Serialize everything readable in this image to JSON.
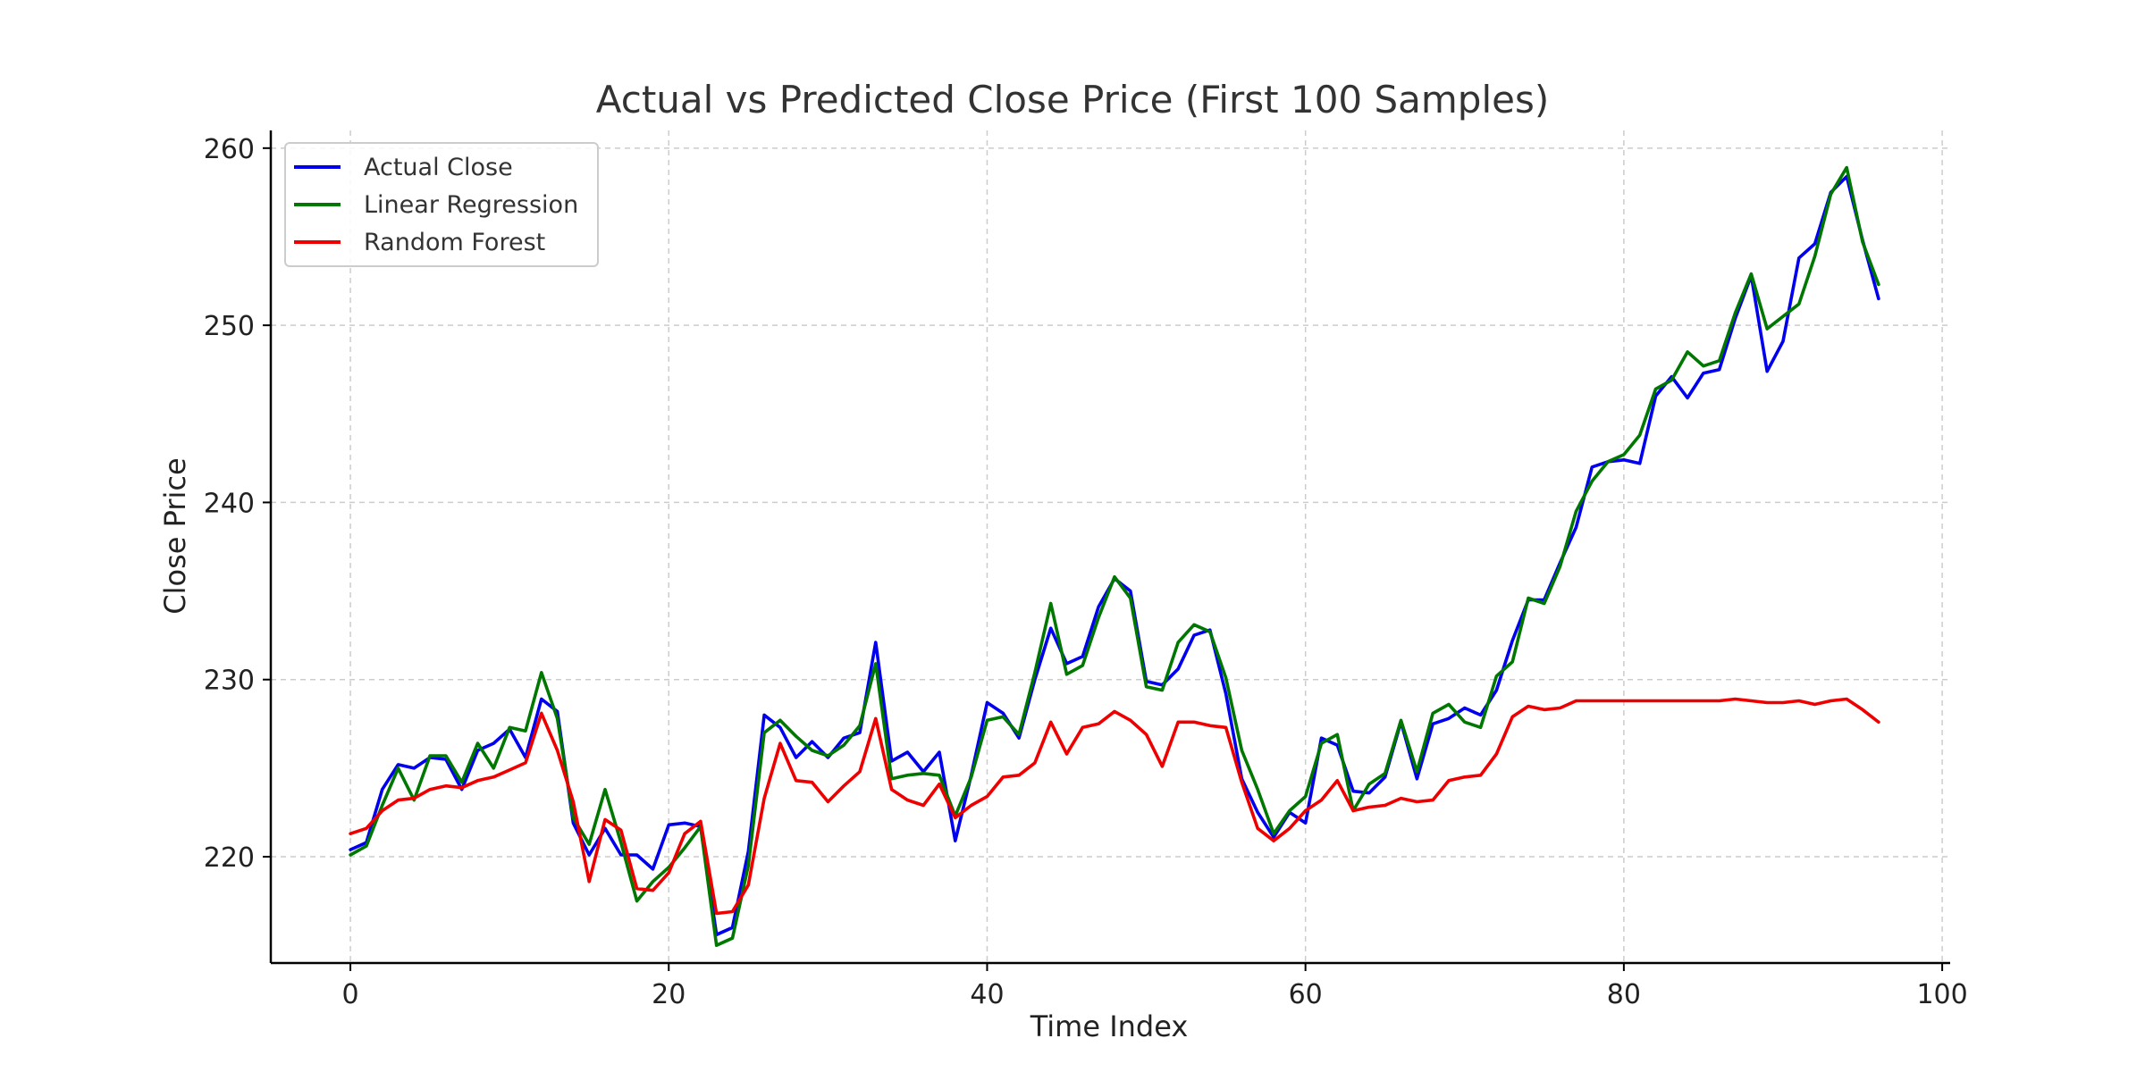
{
  "chart_data": {
    "type": "line",
    "title": "Actual vs Predicted Close Price (First 100 Samples)",
    "xlabel": "Time Index",
    "ylabel": "Close Price",
    "xlim": [
      -5,
      100.5
    ],
    "ylim": [
      214,
      261
    ],
    "xticks": [
      0,
      20,
      40,
      60,
      80,
      100
    ],
    "yticks": [
      220,
      230,
      240,
      250,
      260
    ],
    "grid": true,
    "legend_position": "top-left",
    "series": [
      {
        "name": "Actual Close",
        "color": "#0000ee",
        "values": [
          220.4,
          220.8,
          223.8,
          225.2,
          225.0,
          225.6,
          225.5,
          223.8,
          226.0,
          226.4,
          227.2,
          225.6,
          228.9,
          228.2,
          221.9,
          220.1,
          221.6,
          220.1,
          220.1,
          219.3,
          221.8,
          221.9,
          221.7,
          215.6,
          216.0,
          220.3,
          228.0,
          227.3,
          225.6,
          226.5,
          225.6,
          226.7,
          227.0,
          232.1,
          225.4,
          225.9,
          224.8,
          225.9,
          220.9,
          224.6,
          228.7,
          228.1,
          226.7,
          230.0,
          232.9,
          230.9,
          231.3,
          234.1,
          235.7,
          235.0,
          229.9,
          229.7,
          230.6,
          232.5,
          232.8,
          229.2,
          224.4,
          222.5,
          221.1,
          222.5,
          221.9,
          226.7,
          226.3,
          223.7,
          223.6,
          224.5,
          227.6,
          224.4,
          227.5,
          227.8,
          228.4,
          228.0,
          229.4,
          232.2,
          234.5,
          234.5,
          236.6,
          238.6,
          242.0,
          242.3,
          242.4,
          242.2,
          246.0,
          247.1,
          245.9,
          247.3,
          247.5,
          250.4,
          252.8,
          247.4,
          249.1,
          253.8,
          254.6,
          257.5,
          258.4,
          254.8,
          251.5
        ]
      },
      {
        "name": "Linear Regression",
        "color": "#007700",
        "values": [
          220.1,
          220.6,
          222.9,
          225.0,
          223.2,
          225.7,
          225.7,
          224.2,
          226.4,
          225.0,
          227.3,
          227.1,
          230.4,
          227.8,
          222.2,
          220.7,
          223.8,
          220.8,
          217.5,
          218.6,
          219.4,
          220.5,
          221.7,
          215.0,
          215.4,
          219.5,
          227.0,
          227.7,
          226.8,
          226.0,
          225.7,
          226.3,
          227.4,
          230.9,
          224.4,
          224.6,
          224.7,
          224.6,
          222.3,
          224.5,
          227.7,
          227.9,
          226.9,
          230.4,
          234.3,
          230.3,
          230.8,
          233.5,
          235.8,
          234.6,
          229.6,
          229.4,
          232.1,
          233.1,
          232.7,
          230.1,
          226.0,
          223.8,
          221.3,
          222.6,
          223.4,
          226.4,
          226.9,
          222.6,
          224.1,
          224.7,
          227.7,
          224.8,
          228.1,
          228.6,
          227.6,
          227.3,
          230.2,
          231.0,
          234.6,
          234.3,
          236.4,
          239.5,
          241.2,
          242.3,
          242.7,
          243.8,
          246.4,
          246.9,
          248.5,
          247.7,
          248.0,
          250.7,
          252.9,
          249.8,
          250.5,
          251.2,
          253.9,
          257.4,
          258.9,
          254.7,
          252.3
        ]
      },
      {
        "name": "Random Forest",
        "color": "#ee0000",
        "values": [
          221.3,
          221.6,
          222.6,
          223.2,
          223.3,
          223.8,
          224.0,
          223.9,
          224.3,
          224.5,
          224.9,
          225.3,
          228.1,
          226.0,
          223.1,
          218.6,
          222.1,
          221.5,
          218.2,
          218.1,
          219.1,
          221.3,
          222.0,
          216.8,
          216.9,
          218.4,
          223.3,
          226.4,
          224.3,
          224.2,
          223.1,
          224.0,
          224.8,
          227.8,
          223.8,
          223.2,
          222.9,
          224.1,
          222.2,
          222.9,
          223.4,
          224.5,
          224.6,
          225.3,
          227.6,
          225.8,
          227.3,
          227.5,
          228.2,
          227.7,
          226.9,
          225.1,
          227.6,
          227.6,
          227.4,
          227.3,
          224.2,
          221.6,
          220.9,
          221.6,
          222.6,
          223.2,
          224.3,
          222.6,
          222.8,
          222.9,
          223.3,
          223.1,
          223.2,
          224.3,
          224.5,
          224.6,
          225.8,
          227.9,
          228.5,
          228.3,
          228.4,
          228.8,
          228.8,
          228.8,
          228.8,
          228.8,
          228.8,
          228.8,
          228.8,
          228.8,
          228.8,
          228.9,
          228.8,
          228.7,
          228.7,
          228.8,
          228.6,
          228.8,
          228.9,
          228.3,
          227.6
        ]
      }
    ]
  }
}
